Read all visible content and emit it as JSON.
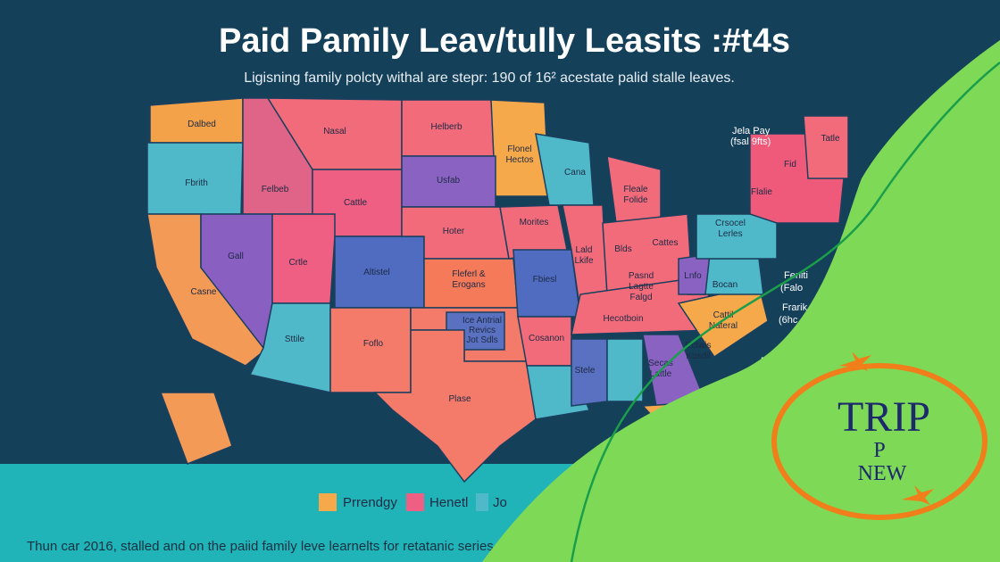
{
  "header": {
    "title": "Paid Pamily Leav/tully Leasits :#t4s",
    "subtitle": "Ligisning family polcty withal are stepr: 190 of 16² acestate palid stalle leaves."
  },
  "map": {
    "labels": [
      "Dalbed",
      "Nasal",
      "Helberb",
      "Flonel",
      "Hectos",
      "Cana",
      "Fbrith",
      "Felbeb",
      "Usfab",
      "Fleale",
      "Folide",
      "Cattle",
      "Morites",
      "Hoter",
      "Gall",
      "Crtle",
      "Altistel",
      "Fleferl &",
      "Erogans",
      "Fbiesl",
      "Lald",
      "Lkife",
      "Blds",
      "Cattes",
      "Pasnd",
      "Lagtte",
      "Falgd",
      "Crsocel",
      "Lerles",
      "Lnfo",
      "Bocan",
      "Casne",
      "Ice Antrial",
      "Revics",
      "Jot Sdls",
      "Cosanon",
      "Hecotboin",
      "Sttile",
      "Foflo",
      "Cattil",
      "Nateral",
      "Ectwis",
      "Kosdil",
      "Secas",
      "Lattle",
      "Stele",
      "Plase",
      "Tatle",
      "Flalie",
      "Fid"
    ]
  },
  "callouts": [
    "Jela Pay",
    "(fsal 9fts)",
    "Feniti",
    "(Falo",
    "Frarik",
    "(6hc",
    "Pa"
  ],
  "legend": [
    "Prrendgy",
    "Henetl",
    "Jo"
  ],
  "footer": "Thun car 2016, stalled and on the paiid family leve learnelts for retatanic series.",
  "logo": {
    "line1": "TRIP",
    "line2": "P",
    "line3": "NEW"
  }
}
